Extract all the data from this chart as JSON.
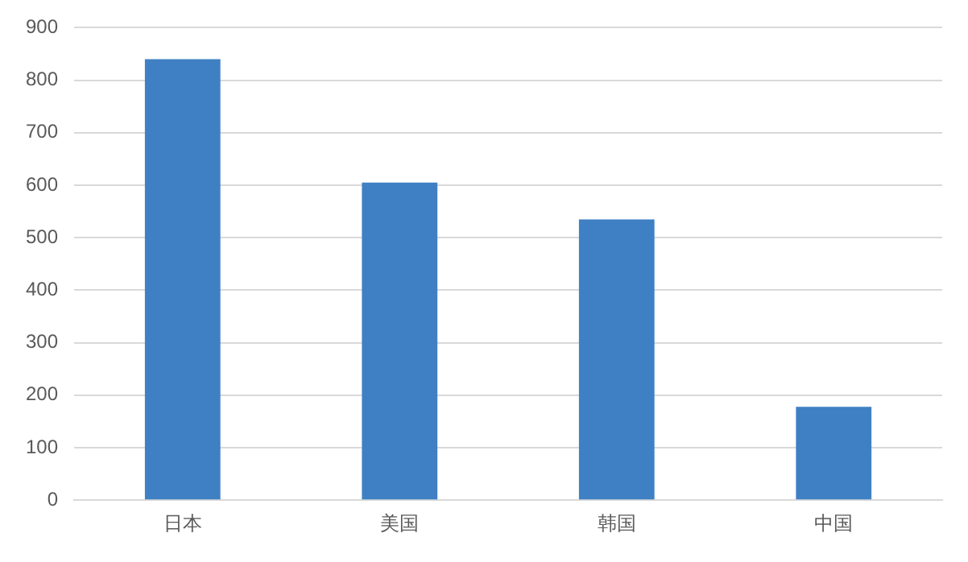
{
  "chart_data": {
    "type": "bar",
    "categories": [
      "日本",
      "美国",
      "韩国",
      "中国"
    ],
    "values": [
      840,
      605,
      535,
      178
    ],
    "color": "#3f80c4",
    "ylim": [
      0,
      900
    ],
    "yticks": [
      0,
      100,
      200,
      300,
      400,
      500,
      600,
      700,
      800,
      900
    ],
    "grid": "y",
    "legend": false
  }
}
